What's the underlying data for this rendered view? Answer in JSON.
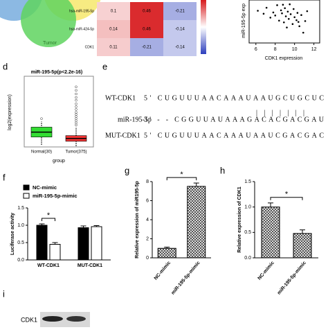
{
  "venn": {
    "label": "Tumor"
  },
  "heatmap": {
    "rows": [
      "hsa-miR-195-5p",
      "hsa-miR-424-5p",
      "CDK1"
    ],
    "values": [
      [
        0.1,
        0.46,
        -0.21
      ],
      [
        0.14,
        0.46,
        -0.14
      ],
      [
        0.11,
        -0.21,
        -0.14
      ]
    ]
  },
  "scatter": {
    "ylabel": "miR-195-5p exp",
    "xlabel": "CDK1 expression",
    "xlim": [
      5.3,
      12.6
    ],
    "ylim": [
      0,
      10
    ],
    "xticks": [
      6,
      8,
      10,
      12
    ],
    "x": [
      6.2,
      6.8,
      7.1,
      7.5,
      7.8,
      8.0,
      8.2,
      8.4,
      8.6,
      8.7,
      8.9,
      9.0,
      9.1,
      9.3,
      9.4,
      9.5,
      9.6,
      9.8,
      9.9,
      10.0,
      10.2,
      10.3,
      10.5,
      10.7,
      10.9,
      11.1,
      11.3,
      9.2,
      8.8,
      10.4
    ],
    "y": [
      7.5,
      6.8,
      8.2,
      5.9,
      7.1,
      6.4,
      8.8,
      5.2,
      7.6,
      6.9,
      4.8,
      8.1,
      6.2,
      7.3,
      5.6,
      9.0,
      6.7,
      4.4,
      7.9,
      6.0,
      5.3,
      7.0,
      3.9,
      6.5,
      2.4,
      5.1,
      7.4,
      3.6,
      8.9,
      4.9
    ]
  },
  "boxplot": {
    "label": "d",
    "title": "miR-195-5p(p<2.2e-16)",
    "ylabel": "log2(expression)",
    "xlabel": "group",
    "ylim": [
      0,
      10
    ],
    "groups": [
      {
        "name": "Normal(30)",
        "color": "#33dd33",
        "whisker_low": 0.3,
        "q1": 1.4,
        "median": 2.1,
        "q3": 2.8,
        "whisker_high": 3.6,
        "outliers": [
          4.0
        ]
      },
      {
        "name": "Tumor(375)",
        "color": "#ee3333",
        "whisker_low": 0.1,
        "q1": 0.8,
        "median": 1.2,
        "q3": 1.6,
        "whisker_high": 2.8,
        "outliers": [
          3.1,
          3.4,
          3.7,
          4.0,
          4.3,
          4.6,
          4.9,
          5.3,
          5.7,
          6.1,
          6.6,
          7.0,
          7.5,
          8.0,
          8.5
        ]
      }
    ]
  },
  "sequences": {
    "label": "e",
    "rows": [
      {
        "name": "WT-CDK1",
        "seq": "5' CUGUUUAACAAAUAAUGCUGCUC"
      },
      {
        "name": "miR-195-5p",
        "seq": "3' - - CGGUUAUAAAGACACGACGAU"
      },
      {
        "name": "MUT-CDK1",
        "seq": "5' CUGUUUAACAAAUAAUCGACGAC"
      }
    ],
    "pairing": "|||||||"
  },
  "luciferase": {
    "label": "f",
    "ylabel": "Luciferase activity",
    "categories": [
      "WT-CDK1",
      "MUT-CDK1"
    ],
    "series": [
      {
        "name": "NC-mimic",
        "color": "#000000",
        "values": [
          1.0,
          0.93
        ],
        "errors": [
          0.04,
          0.05
        ]
      },
      {
        "name": "miR-195-5p-mimic",
        "color": "#ffffff",
        "values": [
          0.45,
          0.96
        ],
        "errors": [
          0.05,
          0.03
        ]
      }
    ],
    "ylim": [
      0,
      1.5
    ],
    "yticks": [
      {
        "value": 0,
        "label": "0.0"
      },
      {
        "value": 0.5,
        "label": "0.5"
      },
      {
        "value": 1,
        "label": "1.0"
      },
      {
        "value": 1.5,
        "label": "1.5"
      }
    ],
    "significance": "*"
  },
  "mir_expression": {
    "label": "g",
    "ylabel": "Relative expression of miR195-5p",
    "categories": [
      "NC-mimic",
      "miR-195-5p-mimic"
    ],
    "values": [
      1.0,
      7.5
    ],
    "errors": [
      0.12,
      0.35
    ],
    "ylim": [
      0,
      8
    ],
    "yticks": [
      0,
      2,
      4,
      6,
      8
    ],
    "significance": "*"
  },
  "cdk1_expression": {
    "label": "h",
    "ylabel": "Relative expression of CDK1",
    "categories": [
      "NC-mimic",
      "miR-195-5p-mimic"
    ],
    "values": [
      1.0,
      0.48
    ],
    "errors": [
      0.08,
      0.07
    ],
    "ylim": [
      0,
      1.5
    ],
    "yticks": [
      {
        "value": 0,
        "label": "0.0"
      },
      {
        "value": 0.5,
        "label": "0.5"
      },
      {
        "value": 1,
        "label": "1.0"
      },
      {
        "value": 1.5,
        "label": "1.5"
      }
    ],
    "significance": "*"
  },
  "blot": {
    "label": "i",
    "band": "CDK1"
  }
}
